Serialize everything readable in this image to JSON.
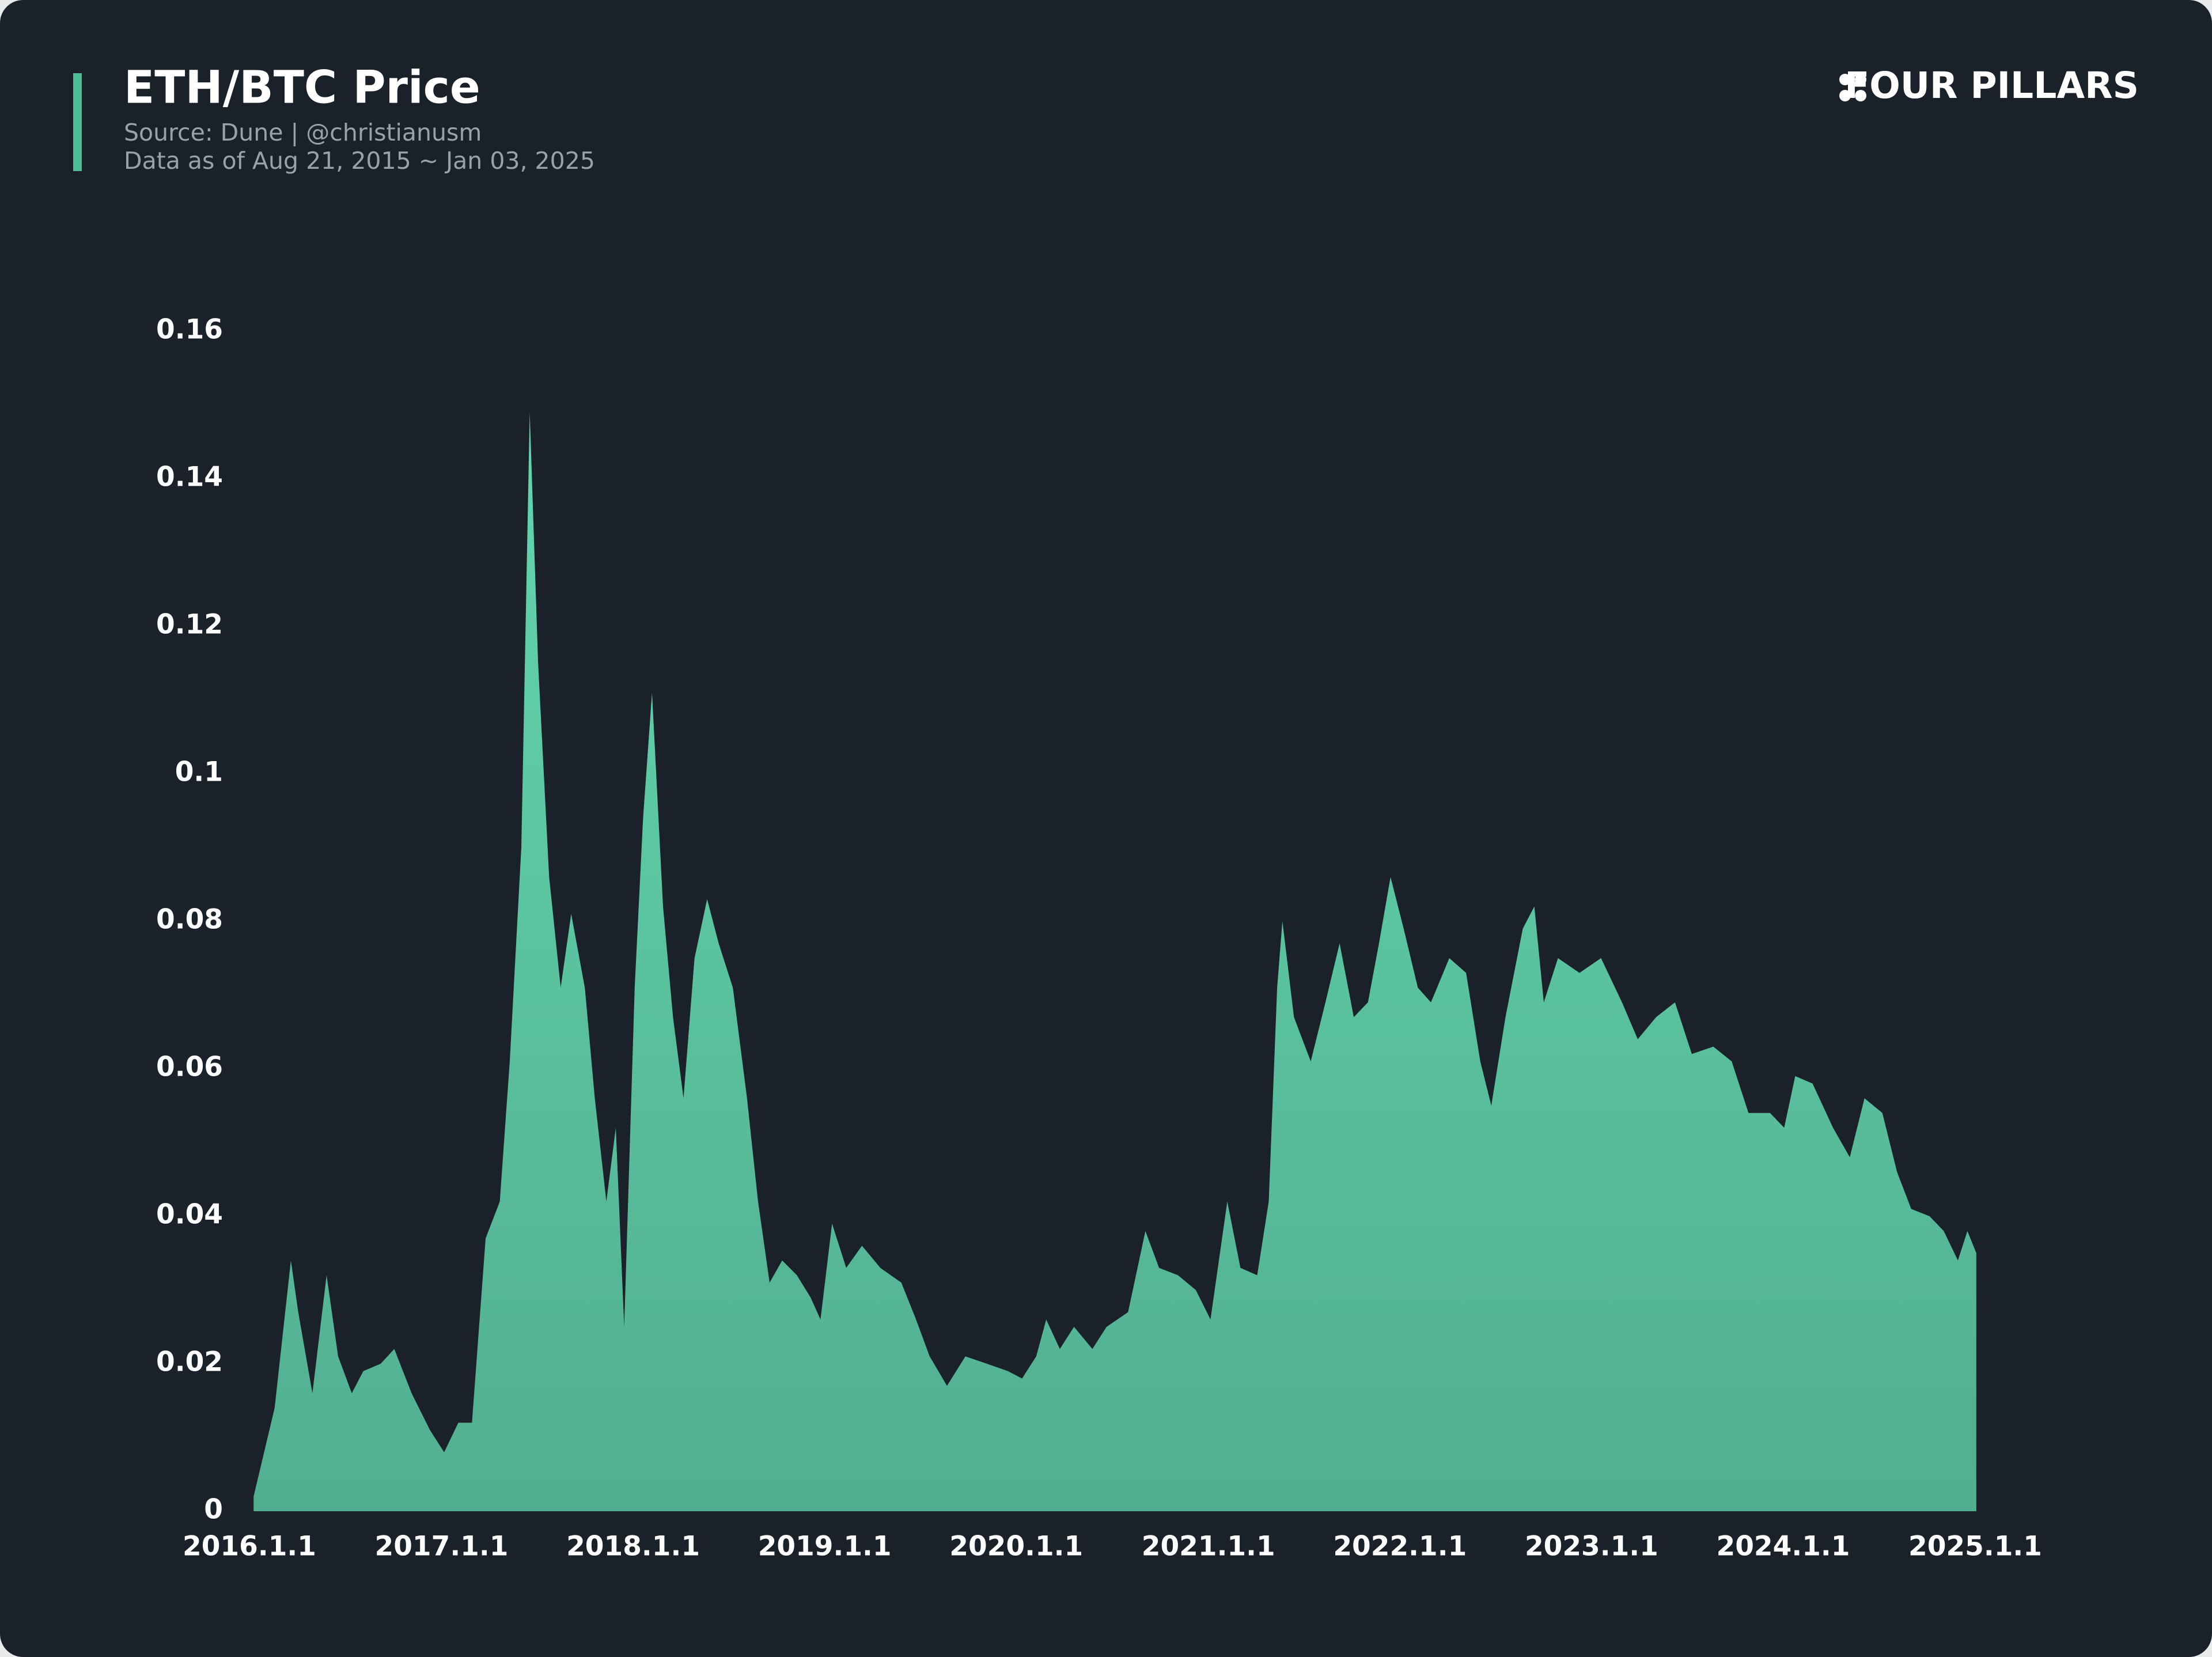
{
  "brand": "FOUR PILLARS",
  "chart_data": {
    "type": "area",
    "title": "ETH/BTC Price",
    "subtitle": [
      "Source: Dune | @christianusm",
      "Data as of Aug 21, 2015 ~ Jan 03, 2025"
    ],
    "color": "#62d6ae",
    "grid": false,
    "x": [
      "2016-01-09",
      "2016-02-18",
      "2016-03-20",
      "2016-04-03",
      "2016-04-30",
      "2016-05-27",
      "2016-06-18",
      "2016-07-14",
      "2016-08-05",
      "2016-09-07",
      "2016-10-03",
      "2016-11-05",
      "2016-12-10",
      "2017-01-06",
      "2017-02-02",
      "2017-02-28",
      "2017-03-26",
      "2017-04-22",
      "2017-05-11",
      "2017-06-02",
      "2017-06-18",
      "2017-07-04",
      "2017-07-25",
      "2017-08-16",
      "2017-09-05",
      "2017-10-01",
      "2017-10-20",
      "2017-11-11",
      "2017-11-29",
      "2017-12-15",
      "2018-01-04",
      "2018-01-20",
      "2018-02-06",
      "2018-02-27",
      "2018-03-18",
      "2018-04-07",
      "2018-04-28",
      "2018-05-22",
      "2018-06-13",
      "2018-07-10",
      "2018-08-06",
      "2018-08-27",
      "2018-09-18",
      "2018-10-12",
      "2018-11-09",
      "2018-12-05",
      "2018-12-24",
      "2019-01-15",
      "2019-02-11",
      "2019-03-13",
      "2019-04-17",
      "2019-05-27",
      "2019-06-24",
      "2019-07-20",
      "2019-08-22",
      "2019-09-26",
      "2019-11-06",
      "2019-12-16",
      "2020-01-12",
      "2020-02-08",
      "2020-02-27",
      "2020-03-24",
      "2020-04-20",
      "2020-05-25",
      "2020-06-21",
      "2020-08-01",
      "2020-09-03",
      "2020-09-29",
      "2020-11-04",
      "2020-12-08",
      "2021-01-05",
      "2021-02-06",
      "2021-03-03",
      "2021-04-04",
      "2021-04-26",
      "2021-05-12",
      "2021-05-22",
      "2021-06-13",
      "2021-07-15",
      "2021-08-12",
      "2021-09-08",
      "2021-10-05",
      "2021-11-01",
      "2021-11-22",
      "2021-12-14",
      "2022-01-08",
      "2022-02-04",
      "2022-03-01",
      "2022-04-05",
      "2022-05-07",
      "2022-06-03",
      "2022-06-24",
      "2022-07-21",
      "2022-08-23",
      "2022-09-14",
      "2022-10-02",
      "2022-10-29",
      "2022-12-09",
      "2023-01-19",
      "2023-02-28",
      "2023-03-30",
      "2023-05-04",
      "2023-06-09",
      "2023-07-11",
      "2023-08-21",
      "2023-09-25",
      "2023-10-27",
      "2023-12-07",
      "2024-01-03",
      "2024-01-24",
      "2024-02-26",
      "2024-04-05",
      "2024-05-07",
      "2024-06-04",
      "2024-07-08",
      "2024-08-05",
      "2024-09-01",
      "2024-10-06",
      "2024-11-02",
      "2024-11-29",
      "2024-12-17",
      "2025-01-03"
    ],
    "values": [
      0.002,
      0.014,
      0.034,
      0.027,
      0.016,
      0.032,
      0.021,
      0.016,
      0.019,
      0.02,
      0.022,
      0.016,
      0.011,
      0.008,
      0.012,
      0.012,
      0.037,
      0.042,
      0.061,
      0.09,
      0.149,
      0.115,
      0.086,
      0.071,
      0.081,
      0.071,
      0.056,
      0.042,
      0.052,
      0.025,
      0.071,
      0.094,
      0.111,
      0.082,
      0.067,
      0.056,
      0.075,
      0.083,
      0.077,
      0.071,
      0.056,
      0.042,
      0.031,
      0.034,
      0.032,
      0.029,
      0.026,
      0.039,
      0.033,
      0.036,
      0.033,
      0.031,
      0.026,
      0.021,
      0.017,
      0.021,
      0.02,
      0.019,
      0.018,
      0.021,
      0.026,
      0.022,
      0.025,
      0.022,
      0.025,
      0.027,
      0.038,
      0.033,
      0.032,
      0.03,
      0.026,
      0.042,
      0.033,
      0.032,
      0.042,
      0.071,
      0.08,
      0.067,
      0.061,
      0.069,
      0.077,
      0.067,
      0.069,
      0.077,
      0.086,
      0.079,
      0.071,
      0.069,
      0.075,
      0.073,
      0.061,
      0.055,
      0.067,
      0.079,
      0.082,
      0.069,
      0.075,
      0.073,
      0.075,
      0.069,
      0.064,
      0.067,
      0.069,
      0.062,
      0.063,
      0.061,
      0.054,
      0.054,
      0.052,
      0.059,
      0.058,
      0.052,
      0.048,
      0.056,
      0.054,
      0.046,
      0.041,
      0.04,
      0.038,
      0.034,
      0.038,
      0.035
    ],
    "xlim": [
      "2016-01-01",
      "2025-01-01"
    ],
    "xticks": [
      {
        "value": "2016-01-01",
        "label": "2016.1.1"
      },
      {
        "value": "2017-01-01",
        "label": "2017.1.1"
      },
      {
        "value": "2018-01-01",
        "label": "2018.1.1"
      },
      {
        "value": "2019-01-01",
        "label": "2019.1.1"
      },
      {
        "value": "2020-01-01",
        "label": "2020.1.1"
      },
      {
        "value": "2021-01-01",
        "label": "2021.1.1"
      },
      {
        "value": "2022-01-01",
        "label": "2022.1.1"
      },
      {
        "value": "2023-01-01",
        "label": "2023.1.1"
      },
      {
        "value": "2024-01-01",
        "label": "2024.1.1"
      },
      {
        "value": "2025-01-01",
        "label": "2025.1.1"
      }
    ],
    "ylim": [
      0,
      0.16
    ],
    "yticks": [
      0,
      0.02,
      0.04,
      0.06,
      0.08,
      0.1,
      0.12,
      0.14,
      0.16
    ]
  }
}
